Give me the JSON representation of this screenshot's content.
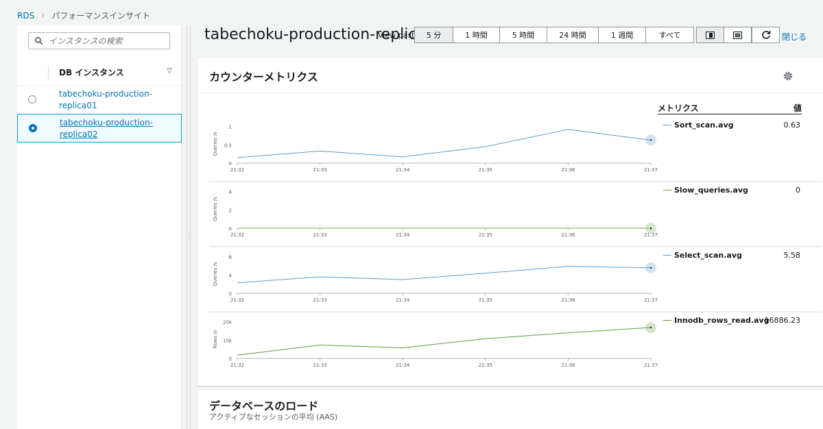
{
  "breadcrumb": {
    "root": "RDS",
    "current": "パフォーマンスインサイト"
  },
  "sidebar": {
    "search_placeholder": "インスタンスの検索",
    "column_header": "DB インスタンス",
    "instances": [
      {
        "name": "tabechoku-production-replica01",
        "selected": false
      },
      {
        "name": "tabechoku-production-replica02",
        "selected": true
      }
    ]
  },
  "header": {
    "title": "tabechoku-production-replica02",
    "view_past_label": "View past",
    "ranges": [
      "5 分",
      "1 時間",
      "5 時間",
      "24 時間",
      "1 週間",
      "すべて"
    ],
    "active_range": "5 分",
    "close_label": "閉じる"
  },
  "counter_metrics": {
    "title": "カウンターメトリクス",
    "legend_header": {
      "metrics": "メトリクス",
      "value": "値"
    }
  },
  "chart_data": [
    {
      "type": "line",
      "x": [
        "21:32",
        "21:33",
        "21:34",
        "21:35",
        "21:36",
        "21:37"
      ],
      "series": [
        {
          "name": "Sort_scan.avg",
          "values": [
            0.15,
            0.33,
            0.17,
            0.45,
            0.92,
            0.63
          ],
          "color": "#5c9ad2"
        }
      ],
      "ylabel": "Queries /s",
      "yticks": [
        "0",
        "0.5",
        "1"
      ],
      "ylim": [
        0,
        1.05
      ],
      "legend_value": "0.63"
    },
    {
      "type": "line",
      "x": [
        "21:32",
        "21:33",
        "21:34",
        "21:35",
        "21:36",
        "21:37"
      ],
      "series": [
        {
          "name": "Slow_queries.avg",
          "values": [
            0,
            0,
            0,
            0,
            0,
            0
          ],
          "color": "#6aaf50"
        }
      ],
      "ylabel": "Queries /s",
      "yticks": [
        "0",
        "2",
        "4"
      ],
      "ylim": [
        0,
        4.2
      ],
      "legend_value": "0"
    },
    {
      "type": "line",
      "x": [
        "21:32",
        "21:33",
        "21:34",
        "21:35",
        "21:36",
        "21:37"
      ],
      "series": [
        {
          "name": "Select_scan.avg",
          "values": [
            2.3,
            3.6,
            3.0,
            4.4,
            5.9,
            5.58
          ],
          "color": "#5c9ad2"
        }
      ],
      "ylabel": "Queries /s",
      "yticks": [
        "0",
        "4",
        "8"
      ],
      "ylim": [
        0,
        8.4
      ],
      "legend_value": "5.58"
    },
    {
      "type": "line",
      "x": [
        "21:32",
        "21:33",
        "21:34",
        "21:35",
        "21:36",
        "21:37"
      ],
      "series": [
        {
          "name": "Innodb_rows_read.avg",
          "values": [
            1800,
            7300,
            5800,
            10800,
            14000,
            16886.23
          ],
          "color": "#5c9a3d"
        }
      ],
      "ylabel": "Rows /s",
      "yticks": [
        "0",
        "10k",
        "20k"
      ],
      "ylim": [
        0,
        21000
      ],
      "legend_value": "16886.23"
    }
  ],
  "db_load": {
    "title": "データベースのロード",
    "subtitle": "アクティブなセッションの平均 (AAS)"
  }
}
